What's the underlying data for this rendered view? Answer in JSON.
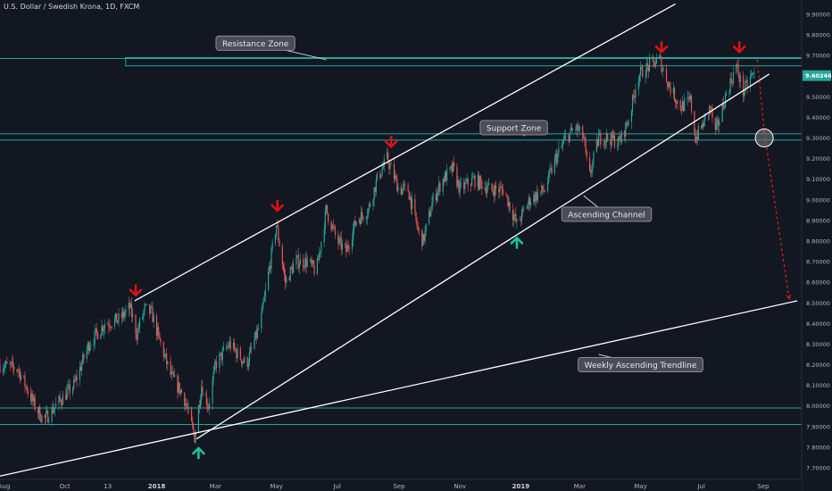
{
  "header": {
    "title": "U.S. Dollar / Swedish Krona, 1D, FXCM"
  },
  "chart_data": {
    "type": "candlestick",
    "title": "U.S. Dollar / Swedish Krona, 1D, FXCM",
    "last_price": "9.60246",
    "y_ticks": [
      "9.90000",
      "9.80000",
      "9.70000",
      "9.60000",
      "9.50000",
      "9.40000",
      "9.30000",
      "9.20000",
      "9.10000",
      "9.00000",
      "8.90000",
      "8.80000",
      "8.70000",
      "8.60000",
      "8.50000",
      "8.40000",
      "8.30000",
      "8.20000",
      "8.10000",
      "8.00000",
      "7.90000",
      "7.80000",
      "7.70000"
    ],
    "ylim": [
      7.66,
      9.94
    ],
    "x_ticks": [
      {
        "label": "Aug",
        "date": "2017-08-01",
        "bold": false
      },
      {
        "label": "Oct",
        "date": "2017-10-01",
        "bold": false
      },
      {
        "label": "13",
        "date": "2017-11-13",
        "bold": false
      },
      {
        "label": "2018",
        "date": "2018-01-01",
        "bold": true
      },
      {
        "label": "Mar",
        "date": "2018-03-01",
        "bold": false
      },
      {
        "label": "May",
        "date": "2018-05-01",
        "bold": false
      },
      {
        "label": "Jul",
        "date": "2018-07-01",
        "bold": false
      },
      {
        "label": "Sep",
        "date": "2018-09-01",
        "bold": false
      },
      {
        "label": "Nov",
        "date": "2018-11-01",
        "bold": false
      },
      {
        "label": "2019",
        "date": "2019-01-01",
        "bold": true
      },
      {
        "label": "Mar",
        "date": "2019-03-01",
        "bold": false
      },
      {
        "label": "May",
        "date": "2019-05-01",
        "bold": false
      },
      {
        "label": "Jul",
        "date": "2019-07-01",
        "bold": false
      },
      {
        "label": "Sep",
        "date": "2019-09-01",
        "bold": false
      }
    ],
    "price_path": [
      [
        "2017-07-28",
        8.2
      ],
      [
        "2017-08-15",
        8.18
      ],
      [
        "2017-09-01",
        8.0
      ],
      [
        "2017-09-10",
        7.93
      ],
      [
        "2017-09-25",
        8.02
      ],
      [
        "2017-10-10",
        8.1
      ],
      [
        "2017-10-25",
        8.3
      ],
      [
        "2017-11-10",
        8.4
      ],
      [
        "2017-11-25",
        8.42
      ],
      [
        "2017-12-05",
        8.48
      ],
      [
        "2017-12-12",
        8.35
      ],
      [
        "2017-12-20",
        8.47
      ],
      [
        "2017-12-27",
        8.45
      ],
      [
        "2018-01-05",
        8.3
      ],
      [
        "2018-01-15",
        8.15
      ],
      [
        "2018-01-28",
        8.05
      ],
      [
        "2018-02-08",
        7.85
      ],
      [
        "2018-02-15",
        8.1
      ],
      [
        "2018-02-22",
        8.0
      ],
      [
        "2018-03-01",
        8.2
      ],
      [
        "2018-03-15",
        8.3
      ],
      [
        "2018-04-01",
        8.2
      ],
      [
        "2018-04-15",
        8.4
      ],
      [
        "2018-05-01",
        8.88
      ],
      [
        "2018-05-10",
        8.6
      ],
      [
        "2018-05-20",
        8.7
      ],
      [
        "2018-06-01",
        8.7
      ],
      [
        "2018-06-10",
        8.65
      ],
      [
        "2018-06-20",
        8.95
      ],
      [
        "2018-07-01",
        8.8
      ],
      [
        "2018-07-10",
        8.75
      ],
      [
        "2018-07-20",
        8.9
      ],
      [
        "2018-08-01",
        8.95
      ],
      [
        "2018-08-10",
        9.1
      ],
      [
        "2018-08-20",
        9.2
      ],
      [
        "2018-09-01",
        9.05
      ],
      [
        "2018-09-10",
        9.05
      ],
      [
        "2018-09-20",
        8.85
      ],
      [
        "2018-09-25",
        8.8
      ],
      [
        "2018-10-05",
        9.0
      ],
      [
        "2018-10-15",
        9.1
      ],
      [
        "2018-10-25",
        9.15
      ],
      [
        "2018-11-01",
        9.05
      ],
      [
        "2018-11-15",
        9.1
      ],
      [
        "2018-12-01",
        9.05
      ],
      [
        "2018-12-15",
        9.05
      ],
      [
        "2018-12-28",
        8.88
      ],
      [
        "2019-01-10",
        9.0
      ],
      [
        "2019-01-25",
        9.05
      ],
      [
        "2019-02-05",
        9.2
      ],
      [
        "2019-02-15",
        9.3
      ],
      [
        "2019-02-25",
        9.35
      ],
      [
        "2019-03-05",
        9.3
      ],
      [
        "2019-03-10",
        9.1
      ],
      [
        "2019-03-20",
        9.3
      ],
      [
        "2019-03-30",
        9.3
      ],
      [
        "2019-04-10",
        9.28
      ],
      [
        "2019-04-20",
        9.4
      ],
      [
        "2019-04-28",
        9.6
      ],
      [
        "2019-05-10",
        9.65
      ],
      [
        "2019-05-20",
        9.68
      ],
      [
        "2019-05-30",
        9.55
      ],
      [
        "2019-06-10",
        9.45
      ],
      [
        "2019-06-20",
        9.48
      ],
      [
        "2019-06-25",
        9.3
      ],
      [
        "2019-07-01",
        9.35
      ],
      [
        "2019-07-10",
        9.45
      ],
      [
        "2019-07-15",
        9.32
      ],
      [
        "2019-07-25",
        9.5
      ],
      [
        "2019-08-05",
        9.65
      ],
      [
        "2019-08-12",
        9.52
      ],
      [
        "2019-08-20",
        9.6
      ],
      [
        "2019-08-25",
        9.61
      ]
    ],
    "zones": {
      "resistance": {
        "label": "Resistance Zone",
        "y0": 9.65,
        "y1": 9.69,
        "from": "2017-12-01"
      },
      "support": {
        "label": "Support Zone",
        "y0": 9.29,
        "y1": 9.32
      },
      "bottom": {
        "y0": 7.91,
        "y1": 7.99
      }
    },
    "lines": [
      {
        "name": "channel-upper",
        "from": [
          "2017-12-10",
          8.51
        ],
        "to": [
          "2019-06-05",
          9.95
        ]
      },
      {
        "name": "channel-lower",
        "from": [
          "2018-02-10",
          7.84
        ],
        "to": [
          "2019-09-07",
          9.61
        ]
      },
      {
        "name": "weekly-trendline",
        "from": [
          "2017-07-28",
          7.66
        ],
        "to": [
          "2019-10-05",
          8.51
        ]
      }
    ],
    "projection": [
      [
        "2019-08-26",
        9.68
      ],
      [
        "2019-09-02",
        9.33
      ],
      [
        "2019-09-27",
        8.52
      ]
    ],
    "projection_circle": [
      "2019-09-02",
      9.3
    ],
    "annotations": [
      {
        "text": "Resistance Zone",
        "box": [
          "2018-04-10",
          9.76
        ],
        "pointer": [
          "2018-06-20",
          9.68
        ]
      },
      {
        "text": "Support Zone",
        "box": [
          "2018-12-25",
          9.35
        ],
        "pointer": [
          "2019-01-05",
          9.31
        ]
      },
      {
        "text": "Ascending Channel",
        "box": [
          "2019-03-28",
          8.93
        ],
        "pointer": [
          "2019-03-05",
          9.02
        ]
      },
      {
        "text": "Weekly Ascending Trendline",
        "box": [
          "2019-05-01",
          8.2
        ],
        "pointer": [
          "2019-03-20",
          8.25
        ]
      }
    ],
    "markers": [
      {
        "type": "down",
        "date": "2017-12-11",
        "price": 8.52
      },
      {
        "type": "down",
        "date": "2018-05-02",
        "price": 8.93
      },
      {
        "type": "down",
        "date": "2018-08-24",
        "price": 9.24
      },
      {
        "type": "down",
        "date": "2019-05-22",
        "price": 9.7
      },
      {
        "type": "down",
        "date": "2019-08-08",
        "price": 9.7
      },
      {
        "type": "up",
        "date": "2018-02-12",
        "price": 7.83
      },
      {
        "type": "up",
        "date": "2018-12-28",
        "price": 8.85
      }
    ],
    "colors": {
      "up": "#26a69a",
      "down": "#ef5350",
      "background": "#131722",
      "zone": "#26a69a",
      "trend": "#ffffff",
      "projection": "#e21b1b",
      "down_marker": "#d71313",
      "up_marker": "#1bc39b"
    }
  }
}
